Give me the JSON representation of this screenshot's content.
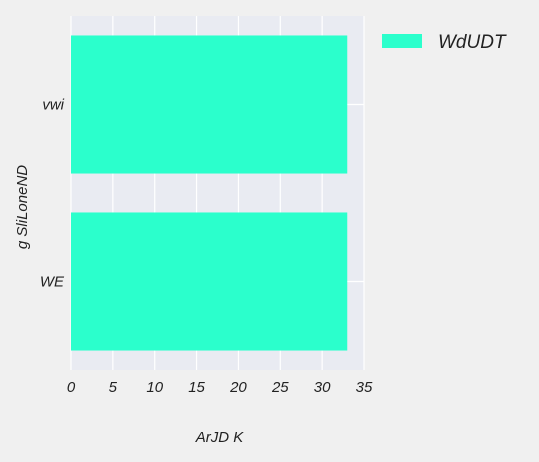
{
  "chart_data": {
    "type": "bar",
    "orientation": "horizontal",
    "categories": [
      "vwi",
      "WE"
    ],
    "series": [
      {
        "name": "WdUDT",
        "values": [
          33,
          33
        ],
        "color": "#2bffcc"
      }
    ],
    "xlabel": "ArJD K",
    "ylabel": "g  SliLoneND",
    "xlim": [
      0,
      35
    ],
    "xticks": [
      0,
      5,
      10,
      15,
      20,
      25,
      30,
      35
    ],
    "grid": true,
    "legend_position": "top-right",
    "plot_background": "#e9ebf2",
    "figure_background": "#f0f0f0"
  }
}
